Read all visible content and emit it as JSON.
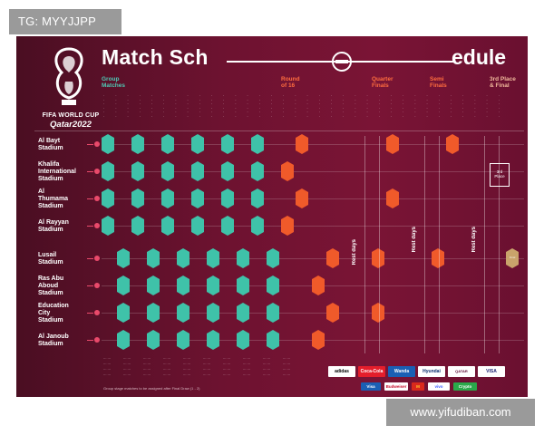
{
  "watermark_top": "TG: MYYJJPP",
  "watermark_bottom": "www.yifudiban.com",
  "logo": {
    "line1": "FIFA WORLD CUP",
    "line2": "Qatar2022"
  },
  "title": {
    "left": "Match Sch",
    "right": "edule"
  },
  "stages": {
    "group": [
      "Group",
      "Matches"
    ],
    "r16": [
      "Round",
      "of 16"
    ],
    "qf": [
      "Quarter",
      "Finals"
    ],
    "sf": [
      "Semi",
      "Finals"
    ],
    "final": [
      "3rd Place",
      "& Final"
    ]
  },
  "stadiums": [
    [
      "Al Bayt",
      "Stadium"
    ],
    [
      "Khalifa",
      "International",
      "Stadium"
    ],
    [
      "Al",
      "Thumama",
      "Stadium"
    ],
    [
      "Al Rayyan",
      "Stadium"
    ],
    [
      "Lusail",
      "Stadium"
    ],
    [
      "Ras Abu",
      "Aboud",
      "Stadium"
    ],
    [
      "Education",
      "City",
      "Stadium"
    ],
    [
      "Al Janoub",
      "Stadium"
    ]
  ],
  "rest_label": "Rest days",
  "bronze": [
    "3rd",
    "Place"
  ],
  "final_label": "Final",
  "footnote": "Group stage matches to be assigned after Final Draw (1 - 2)",
  "sponsors_top": [
    "adidas",
    "Coca-Cola",
    "Wanda",
    "Hyundai",
    "QATAR AIRWAYS",
    "VISA"
  ],
  "sponsors_bottom": [
    "Visa",
    "Budweiser",
    "M",
    "vivo",
    "Crypto"
  ],
  "colors": {
    "teal": "#3fc2a9",
    "orange": "#f05a2a",
    "gold": "#c9a36b",
    "background": "#6d1230"
  }
}
